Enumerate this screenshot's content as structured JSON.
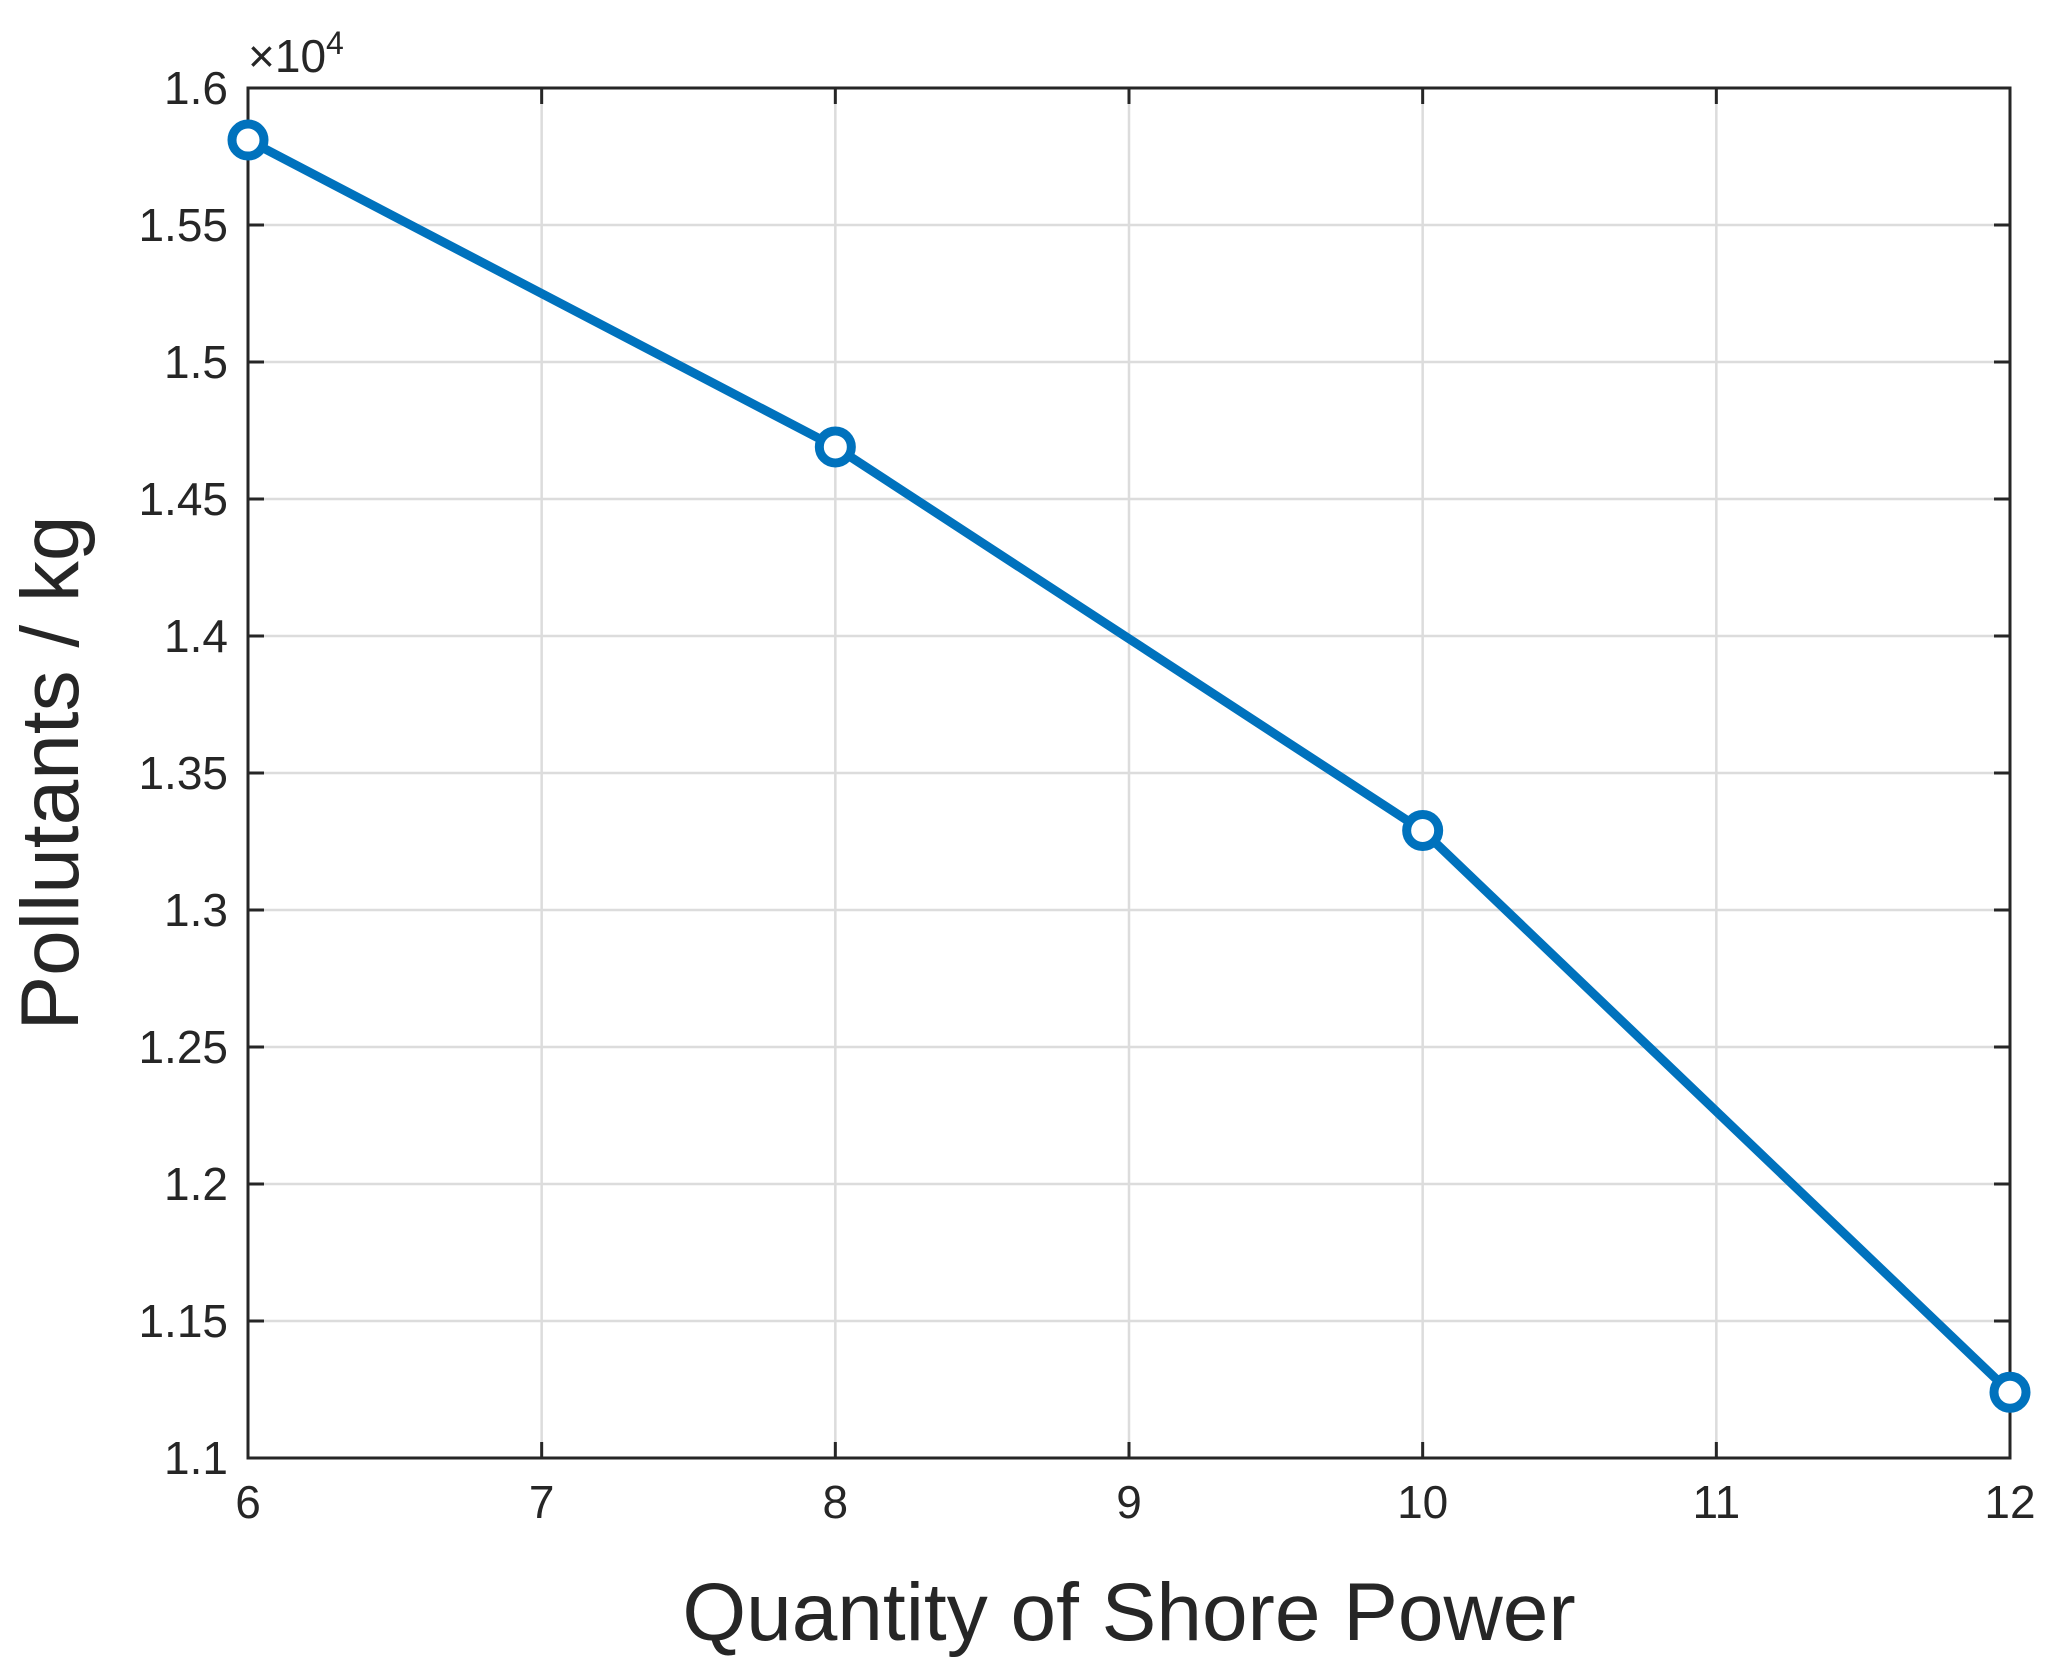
{
  "chart_data": {
    "type": "line",
    "xlabel": "Quantity of Shore Power",
    "ylabel": "Pollutants / kg",
    "y_exponent_base": "×10",
    "y_exponent_power": "4",
    "xlim": [
      6,
      12
    ],
    "ylim": [
      1.1,
      1.6
    ],
    "x_ticks": [
      6,
      7,
      8,
      9,
      10,
      11,
      12
    ],
    "y_ticks": [
      1.1,
      1.15,
      1.2,
      1.25,
      1.3,
      1.35,
      1.4,
      1.45,
      1.5,
      1.55,
      1.6
    ],
    "x_tick_labels": [
      "6",
      "7",
      "8",
      "9",
      "10",
      "11",
      "12"
    ],
    "y_tick_labels": [
      "1.1",
      "1.15",
      "1.2",
      "1.25",
      "1.3",
      "1.35",
      "1.4",
      "1.45",
      "1.5",
      "1.55",
      "1.6"
    ],
    "grid": true,
    "series": [
      {
        "x": [
          6,
          8,
          10,
          12
        ],
        "y": [
          1.581,
          1.469,
          1.329,
          1.124
        ],
        "color": "#0072BD",
        "marker": "circle"
      }
    ]
  }
}
